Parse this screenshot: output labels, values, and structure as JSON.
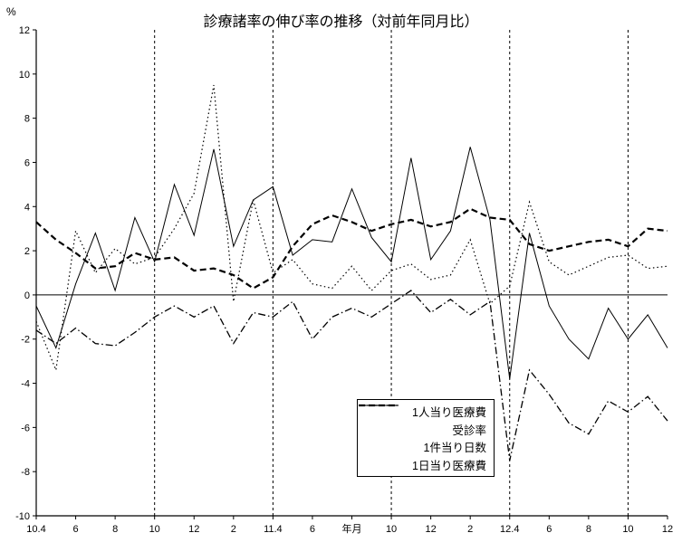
{
  "chart_data": {
    "type": "line",
    "title": "診療諸率の伸び率の推移（対前年同月比）",
    "ylabel": "%",
    "xlabel": "年月",
    "ylim": [
      -10,
      12
    ],
    "ytick_step": 2,
    "yticks": [
      12,
      10,
      8,
      6,
      4,
      2,
      0,
      -2,
      -4,
      -6,
      -8,
      -10
    ],
    "n_points": 33,
    "grid": "vertical-dashed",
    "zero_line": true,
    "line_color": "#000000",
    "background_color": "#ffffff",
    "legend_position": "inside-lower-center",
    "xticks": [
      {
        "index": 0,
        "label": "10.4"
      },
      {
        "index": 2,
        "label": "6"
      },
      {
        "index": 4,
        "label": "8"
      },
      {
        "index": 6,
        "label": "10"
      },
      {
        "index": 8,
        "label": "12"
      },
      {
        "index": 10,
        "label": "2"
      },
      {
        "index": 12,
        "label": "11.4"
      },
      {
        "index": 14,
        "label": "6"
      },
      {
        "index": 16,
        "label": "年月"
      },
      {
        "index": 18,
        "label": "10"
      },
      {
        "index": 20,
        "label": "12"
      },
      {
        "index": 22,
        "label": "2"
      },
      {
        "index": 24,
        "label": "12.4"
      },
      {
        "index": 26,
        "label": "6"
      },
      {
        "index": 28,
        "label": "8"
      },
      {
        "index": 30,
        "label": "10"
      },
      {
        "index": 32,
        "label": "12"
      }
    ],
    "vertical_gridline_indices": [
      6,
      12,
      18,
      24,
      30
    ],
    "series": [
      {
        "name": "1人当り医療費",
        "style": "solid",
        "width": 1,
        "values": [
          -0.5,
          -2.4,
          0.5,
          2.8,
          0.2,
          3.5,
          1.5,
          5.0,
          2.7,
          6.6,
          2.2,
          4.3,
          4.9,
          1.8,
          2.5,
          2.4,
          4.8,
          2.6,
          1.5,
          6.2,
          1.6,
          2.9,
          6.7,
          3.4,
          -3.8,
          2.8,
          -0.5,
          -2.0,
          -2.9,
          -0.6,
          -2.0,
          -0.9,
          -2.4
        ]
      },
      {
        "name": "受診率",
        "style": "dotted",
        "width": 1.2,
        "values": [
          -1.2,
          -3.4,
          2.9,
          1.0,
          2.1,
          1.4,
          1.7,
          3.0,
          4.6,
          9.5,
          -0.3,
          4.3,
          1.0,
          1.6,
          0.5,
          0.3,
          1.3,
          0.2,
          1.1,
          1.4,
          0.7,
          0.9,
          2.5,
          -0.4,
          0.4,
          4.2,
          1.5,
          0.9,
          1.3,
          1.7,
          1.8,
          1.2,
          1.3
        ]
      },
      {
        "name": "1件当り日数",
        "style": "dashdot",
        "width": 1.3,
        "values": [
          -1.6,
          -2.2,
          -1.5,
          -2.2,
          -2.3,
          -1.7,
          -1.0,
          -0.5,
          -1.0,
          -0.5,
          -2.2,
          -0.8,
          -1.0,
          -0.3,
          -2.0,
          -1.0,
          -0.6,
          -1.0,
          -0.4,
          0.2,
          -0.8,
          -0.2,
          -0.9,
          -0.3,
          -7.5,
          -3.4,
          -4.5,
          -5.8,
          -6.3,
          -4.8,
          -5.3,
          -4.6,
          -5.7
        ]
      },
      {
        "name": "1日当り医療費",
        "style": "dashed",
        "width": 2.2,
        "values": [
          3.3,
          2.5,
          1.9,
          1.2,
          1.3,
          1.9,
          1.6,
          1.7,
          1.1,
          1.2,
          0.9,
          0.3,
          0.8,
          2.2,
          3.2,
          3.6,
          3.3,
          2.9,
          3.2,
          3.4,
          3.1,
          3.3,
          3.9,
          3.5,
          3.4,
          2.3,
          2.0,
          2.2,
          2.4,
          2.5,
          2.2,
          3.0,
          2.9
        ]
      }
    ]
  }
}
